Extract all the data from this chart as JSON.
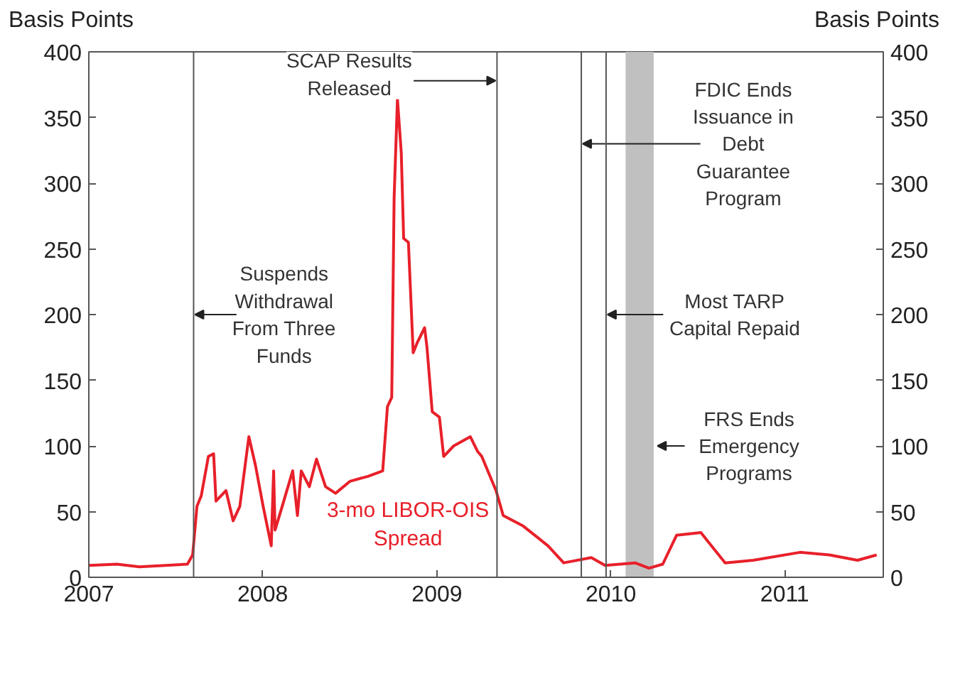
{
  "chart_data": {
    "type": "line",
    "ylabel": "Basis Points",
    "y2label": "Basis Points",
    "x": [
      "2007-01-02",
      "2007-03-01",
      "2007-04-17",
      "2007-07-27",
      "2007-08-07",
      "2007-08-16",
      "2007-08-25",
      "2007-09-09",
      "2007-09-20",
      "2007-09-25",
      "2007-10-16",
      "2007-10-31",
      "2007-11-14",
      "2007-12-03",
      "2007-12-17",
      "2008-01-02",
      "2008-01-19",
      "2008-01-24",
      "2008-01-27",
      "2008-02-11",
      "2008-03-04",
      "2008-03-14",
      "2008-03-22",
      "2008-04-08",
      "2008-04-23",
      "2008-05-12",
      "2008-06-02",
      "2008-07-02",
      "2008-08-10",
      "2008-09-09",
      "2008-09-19",
      "2008-09-28",
      "2008-10-03",
      "2008-10-10",
      "2008-10-18",
      "2008-10-23",
      "2008-11-02",
      "2008-11-12",
      "2008-11-21",
      "2008-12-06",
      "2008-12-11",
      "2008-12-22",
      "2009-01-06",
      "2009-01-15",
      "2009-02-05",
      "2009-03-12",
      "2009-03-27",
      "2009-04-05",
      "2009-05-05",
      "2009-05-20",
      "2009-07-01",
      "2009-08-22",
      "2009-09-24",
      "2009-11-21",
      "2009-12-20",
      "2010-02-21",
      "2010-03-22",
      "2010-04-20",
      "2010-05-19",
      "2010-07-09",
      "2010-08-29",
      "2010-10-27",
      "2011-02-02",
      "2011-04-05",
      "2011-06-03",
      "2011-07-13"
    ],
    "series": [
      {
        "name": "3-mo LIBOR-OIS Spread",
        "color": "#e8202a",
        "values": [
          9,
          10,
          8,
          10,
          17,
          54,
          62,
          92,
          94,
          58,
          66,
          43,
          54,
          107,
          85,
          54,
          24,
          81,
          36,
          54,
          81,
          47,
          81,
          69,
          90,
          69,
          64,
          73,
          77,
          81,
          130,
          137,
          289,
          364,
          323,
          258,
          255,
          171,
          179,
          190,
          175,
          126,
          122,
          92,
          100,
          107,
          96,
          92,
          66,
          47,
          39,
          24,
          11,
          15,
          9,
          11,
          7,
          10,
          32,
          34,
          11,
          13,
          19,
          17,
          13,
          17
        ]
      }
    ],
    "xlim": [
      "2007-01-01",
      "2011-07-27"
    ],
    "xticks": [
      {
        "value": "2007-01-01",
        "label": "2007"
      },
      {
        "value": "2008-01-01",
        "label": "2008"
      },
      {
        "value": "2009-01-01",
        "label": "2009"
      },
      {
        "value": "2010-01-01",
        "label": "2010"
      },
      {
        "value": "2011-01-01",
        "label": "2011"
      }
    ],
    "ylim": [
      0,
      400
    ],
    "yticks": [
      0,
      50,
      100,
      150,
      200,
      250,
      300,
      350,
      400
    ],
    "y2lim": [
      0,
      400
    ],
    "y2ticks": [
      0,
      50,
      100,
      150,
      200,
      250,
      300,
      350,
      400
    ],
    "ref_lines": [
      {
        "axis": "x",
        "value": "2007-08-09",
        "label": "Suspends\nWithdrawal\nFrom Three\nFunds",
        "color": "#555555"
      },
      {
        "axis": "x",
        "value": "2009-05-07",
        "label": "SCAP Results\nReleased",
        "color": "#555555"
      },
      {
        "axis": "x",
        "value": "2009-10-31",
        "label": "FDIC Ends\nIssuance in\nDebt\nGuarantee\nProgram",
        "color": "#555555"
      },
      {
        "axis": "x",
        "value": "2009-12-22",
        "label": "Most TARP\nCapital Repaid",
        "color": "#555555"
      }
    ],
    "bands": [
      {
        "axis": "x",
        "from": "2010-02-01",
        "to": "2010-04-01",
        "label": "FRS Ends\nEmergency\nPrograms",
        "color": "#c0c0c0"
      }
    ],
    "grid": false,
    "marker": "none",
    "line_style": "solid"
  }
}
